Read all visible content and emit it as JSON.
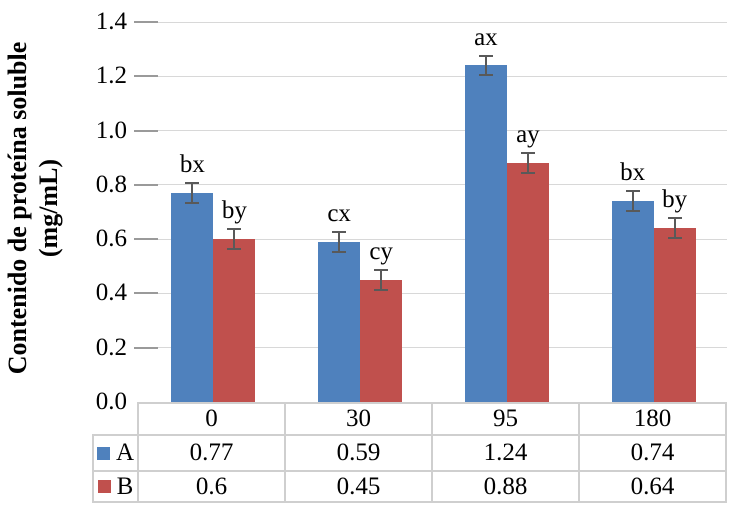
{
  "chart_data": {
    "type": "bar",
    "title": "",
    "ylabel": "Contenido de proteína soluble (mg/mL)",
    "ylabel_lines": [
      "Contenido de proteína soluble",
      "(mg/mL)"
    ],
    "categories": [
      "0",
      "30",
      "95",
      "180"
    ],
    "series": [
      {
        "name": "A",
        "color": "#4F81BD",
        "values": [
          0.77,
          0.59,
          1.24,
          0.74
        ],
        "table_labels": [
          "0.77",
          "0.59",
          "1.24",
          "0.74"
        ],
        "point_labels": [
          "bx",
          "cx",
          "ax",
          "bx"
        ]
      },
      {
        "name": "B",
        "color": "#C0504D",
        "values": [
          0.6,
          0.45,
          0.88,
          0.64
        ],
        "table_labels": [
          "0.6",
          "0.45",
          "0.88",
          "0.64"
        ],
        "point_labels": [
          "by",
          "cy",
          "ay",
          "by"
        ]
      }
    ],
    "error_bar_half": 0.04,
    "y_ticks": [
      1.4,
      1.2,
      1.0,
      0.8,
      0.6,
      0.4,
      0.2,
      0.0
    ],
    "y_tick_labels": [
      "1.4",
      "1.2",
      "1.0",
      "0.8",
      "0.6",
      "0.4",
      "0.2",
      "0.0"
    ],
    "ylim": [
      0,
      1.4
    ],
    "grid": true,
    "legend_position": "table-left"
  },
  "colors": {
    "series_a": "#4F81BD",
    "series_b": "#C0504D",
    "error_bar": "#595959",
    "gridline": "#D8D8D8",
    "tick": "#9A9A9A",
    "table_border": "#CFCFCF",
    "text": "#000000",
    "background": "#FFFFFF"
  }
}
